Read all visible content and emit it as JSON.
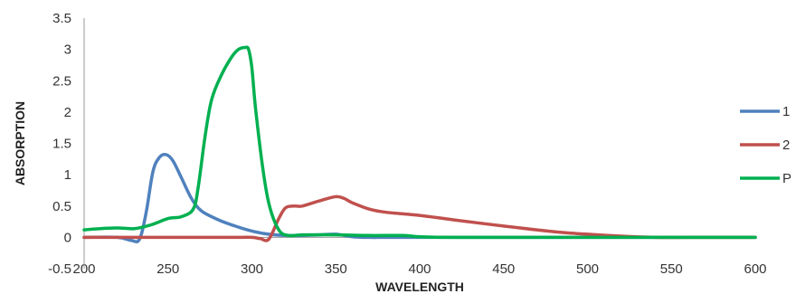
{
  "chart_data": {
    "type": "line",
    "title": "",
    "xlabel": "WAVELENGTH",
    "ylabel": "ABSORPTION",
    "xlim": [
      200,
      600
    ],
    "ylim": [
      -0.5,
      3.5
    ],
    "xticks": [
      "200",
      "250",
      "300",
      "350",
      "400",
      "450",
      "500",
      "550",
      "600"
    ],
    "yticks": [
      "-0.5",
      "0",
      "0.5",
      "1",
      "1.5",
      "2",
      "2.5",
      "3",
      "3.5"
    ],
    "grid": false,
    "legend_position": "right",
    "series": [
      {
        "name": "1",
        "color": "#4F81BD",
        "x": [
          200,
          220,
          228,
          233,
          237,
          241,
          245,
          249,
          253,
          258,
          264,
          270,
          280,
          290,
          300,
          310,
          320,
          330,
          340,
          350,
          360,
          370,
          380,
          400,
          450,
          500,
          550,
          600
        ],
        "y": [
          0,
          0,
          -0.05,
          -0.03,
          0.4,
          1.05,
          1.28,
          1.32,
          1.22,
          0.95,
          0.62,
          0.42,
          0.28,
          0.18,
          0.1,
          0.05,
          0.03,
          0.03,
          0.04,
          0.05,
          0.01,
          0,
          0,
          0,
          0,
          0,
          0,
          0
        ]
      },
      {
        "name": "2",
        "color": "#C0504D",
        "x": [
          200,
          250,
          290,
          300,
          305,
          310,
          316,
          320,
          325,
          330,
          340,
          350,
          355,
          360,
          370,
          380,
          400,
          420,
          450,
          480,
          500,
          520,
          540,
          560,
          600
        ],
        "y": [
          0,
          0,
          0,
          0,
          -0.02,
          -0.03,
          0.3,
          0.47,
          0.5,
          0.5,
          0.58,
          0.65,
          0.62,
          0.55,
          0.45,
          0.4,
          0.35,
          0.28,
          0.18,
          0.09,
          0.05,
          0.02,
          0,
          0,
          0
        ]
      },
      {
        "name": "P",
        "color": "#00B050",
        "x": [
          200,
          210,
          220,
          230,
          240,
          250,
          258,
          265,
          268,
          272,
          276,
          282,
          288,
          292,
          296,
          298,
          300,
          302,
          306,
          310,
          316,
          322,
          330,
          350,
          370,
          390,
          400,
          420,
          450,
          500,
          550,
          600
        ],
        "y": [
          0.12,
          0.14,
          0.15,
          0.14,
          0.2,
          0.3,
          0.33,
          0.45,
          0.8,
          1.6,
          2.2,
          2.6,
          2.88,
          3.0,
          3.03,
          3.0,
          2.7,
          2.1,
          1.2,
          0.55,
          0.12,
          0.03,
          0.04,
          0.04,
          0.03,
          0.03,
          0.01,
          0,
          0,
          0,
          0,
          0
        ]
      }
    ]
  }
}
